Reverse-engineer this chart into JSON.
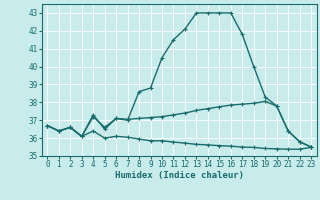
{
  "title": "",
  "xlabel": "Humidex (Indice chaleur)",
  "background_color": "#c8ecec",
  "grid_color": "#ffffff",
  "line_color": "#1a6b6b",
  "x_values": [
    0,
    1,
    2,
    3,
    4,
    5,
    6,
    7,
    8,
    9,
    10,
    11,
    12,
    13,
    14,
    15,
    16,
    17,
    18,
    19,
    20,
    21,
    22,
    23
  ],
  "line1": [
    36.7,
    36.4,
    36.6,
    36.1,
    37.3,
    36.5,
    37.1,
    37.0,
    38.6,
    38.8,
    40.5,
    41.5,
    42.1,
    43.0,
    43.0,
    43.0,
    43.0,
    41.8,
    40.0,
    38.3,
    37.8,
    36.4,
    35.8,
    35.5
  ],
  "line2": [
    36.7,
    36.4,
    36.6,
    36.1,
    37.2,
    36.6,
    37.1,
    37.05,
    37.1,
    37.15,
    37.2,
    37.3,
    37.4,
    37.55,
    37.65,
    37.75,
    37.85,
    37.9,
    37.95,
    38.05,
    37.8,
    36.4,
    35.8,
    35.5
  ],
  "line3": [
    36.7,
    36.4,
    36.6,
    36.1,
    36.4,
    36.0,
    36.1,
    36.05,
    35.95,
    35.85,
    35.85,
    35.78,
    35.72,
    35.65,
    35.62,
    35.58,
    35.55,
    35.5,
    35.48,
    35.42,
    35.4,
    35.38,
    35.38,
    35.48
  ],
  "ylim": [
    35.0,
    43.5
  ],
  "xlim": [
    -0.5,
    23.5
  ],
  "yticks": [
    35,
    36,
    37,
    38,
    39,
    40,
    41,
    42,
    43
  ],
  "xticks": [
    0,
    1,
    2,
    3,
    4,
    5,
    6,
    7,
    8,
    9,
    10,
    11,
    12,
    13,
    14,
    15,
    16,
    17,
    18,
    19,
    20,
    21,
    22,
    23
  ],
  "xlabel_fontsize": 6.5,
  "tick_fontsize": 5.5,
  "linewidth": 1.0,
  "markersize": 3.5
}
